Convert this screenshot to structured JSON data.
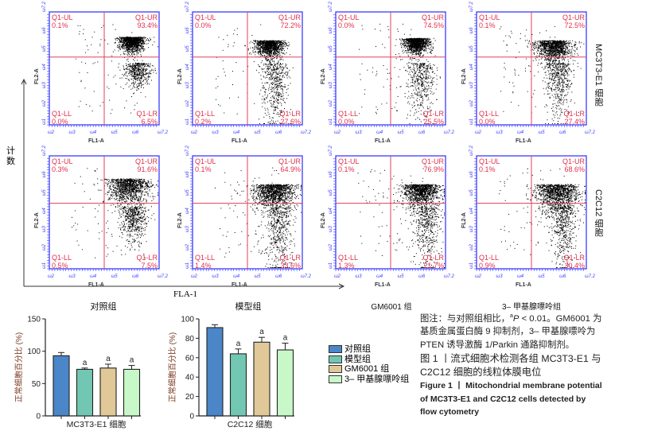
{
  "figure": {
    "y_axis_label": "计数",
    "x_axis_label": "FLA-1",
    "group_labels": [
      "对照组",
      "模型组",
      "GM6001 组",
      "3– 甲基腺嘌呤组"
    ],
    "row_labels": [
      "MC3T3-E1 细胞",
      "C2C12 细胞"
    ],
    "plot_x_label": "FL1-A",
    "plot_y_label": "FL2-A",
    "quadrant_names": [
      "Q1-UL",
      "Q1-UR",
      "Q1-LL",
      "Q1-LR"
    ],
    "x_ticks": [
      "10^2",
      "10^3",
      "10^4",
      "10^5",
      "10^6",
      "10^7.2"
    ],
    "y_ticks": [
      "10^1",
      "10^2",
      "10^3",
      "10^4",
      "10^5",
      "10^6",
      "10^7.2"
    ],
    "panels": [
      [
        {
          "UL": "0.1%",
          "UR": "93.4%",
          "LL": "0.0%",
          "LR": "6.5%"
        },
        {
          "UL": "0.0%",
          "UR": "72.2%",
          "LL": "0.2%",
          "LR": "27.6%"
        },
        {
          "UL": "0.0%",
          "UR": "74.5%",
          "LL": "0.0%",
          "LR": "25.5%"
        },
        {
          "UL": "0.1%",
          "UR": "72.5%",
          "LL": "0.0%",
          "LR": "27.4%"
        }
      ],
      [
        {
          "UL": "0.3%",
          "UR": "91.6%",
          "LL": "0.5%",
          "LR": "7.5%"
        },
        {
          "UL": "0.1%",
          "UR": "64.9%",
          "LL": "1.4%",
          "LR": "33.6%"
        },
        {
          "UL": "0.1%",
          "UR": "76.9%",
          "LL": "1.3%",
          "LR": "21.7%"
        },
        {
          "UL": "0.1%",
          "UR": "68.6%",
          "LL": "0.9%",
          "LR": "30.4%"
        }
      ]
    ],
    "colors": {
      "axis": "#3b3bff",
      "gate": "#e0405a",
      "label": "#e0304a"
    }
  },
  "legend": {
    "items": [
      {
        "label": "对照组",
        "color": "#4a86c8"
      },
      {
        "label": "模型组",
        "color": "#72c7b2"
      },
      {
        "label": "GM6001 组",
        "color": "#e0c898"
      },
      {
        "label": "3– 甲基腺嘌呤组",
        "color": "#c8f8c8"
      }
    ]
  },
  "chart_data": [
    {
      "type": "bar",
      "title": "",
      "xlabel": "MC3T3-E1 细胞",
      "ylabel": "正常细胞百分比 (%)",
      "ylim": [
        0,
        150
      ],
      "yticks": [
        0,
        50,
        100,
        150
      ],
      "categories": [
        "对照组",
        "模型组",
        "GM6001 组",
        "3– 甲基腺嘌呤组"
      ],
      "values": [
        93,
        72,
        74,
        72
      ],
      "errors": [
        5,
        2,
        6,
        6
      ],
      "annotations": [
        "",
        "a",
        "a",
        "a"
      ]
    },
    {
      "type": "bar",
      "title": "",
      "xlabel": "C2C12 细胞",
      "ylabel": "正常细胞百分比 (%)",
      "ylim": [
        0,
        100
      ],
      "yticks": [
        0,
        20,
        40,
        60,
        80,
        100
      ],
      "categories": [
        "对照组",
        "模型组",
        "GM6001 组",
        "3– 甲基腺嘌呤组"
      ],
      "values": [
        91,
        64,
        76,
        68
      ],
      "errors": [
        3,
        5,
        5,
        7
      ],
      "annotations": [
        "",
        "a",
        "a",
        "a"
      ]
    }
  ],
  "caption": {
    "note_prefix": "图注：与对照组相比，",
    "note_sup": "a",
    "note_p": "P",
    "note_rest": " < 0.01。GM6001 为基质金属蛋白酶 9 抑制剂，3– 甲基腺嘌呤为 PTEN 诱导激酶 1/Parkin 通路抑制剂。",
    "title_cn": "图 1 丨流式细胞术检测各组 MC3T3-E1 与 C2C12 细胞的线粒体膜电位",
    "title_en": "Figure 1 丨 Mitochondrial membrane potential of MC3T3-E1 and C2C12 cells detected by flow cytometry"
  }
}
